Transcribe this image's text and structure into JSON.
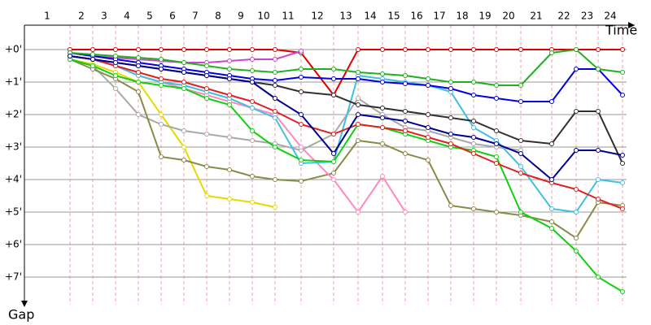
{
  "chart_data": {
    "type": "line",
    "x_label": "Time",
    "y_label": "Gap",
    "categories": [
      "1",
      "2",
      "3",
      "4",
      "5",
      "6",
      "7",
      "8",
      "9",
      "10",
      "11",
      "12",
      "13",
      "14",
      "15",
      "16",
      "17",
      "18",
      "19",
      "20",
      "21",
      "22",
      "23",
      "24"
    ],
    "ylim": [
      -0.75,
      7.85
    ],
    "yticks": [
      {
        "value": 0,
        "label": "+0'"
      },
      {
        "value": 1,
        "label": "+1'"
      },
      {
        "value": 2,
        "label": "+2'"
      },
      {
        "value": 3,
        "label": "+3'"
      },
      {
        "value": 4,
        "label": "+4'"
      },
      {
        "value": 5,
        "label": "+5'"
      },
      {
        "value": 6,
        "label": "+6'"
      },
      {
        "value": 7,
        "label": "+7'"
      }
    ],
    "grid": true,
    "series": [
      {
        "color": "#e00000",
        "values": [
          0,
          0,
          0,
          0,
          0,
          0,
          0,
          0,
          0,
          0,
          0.1,
          1.4,
          0,
          0,
          0,
          0,
          0,
          0,
          0,
          0,
          0,
          0,
          0,
          0
        ]
      },
      {
        "color": "#cc44cc",
        "values": [
          0.1,
          0.2,
          0.25,
          0.3,
          0.35,
          0.4,
          0.4,
          0.35,
          0.3,
          0.3,
          0.05,
          null,
          null,
          null,
          null,
          null,
          null,
          null,
          null,
          null,
          null,
          null,
          null,
          null
        ]
      },
      {
        "color": "#e8d800",
        "values": [
          0.3,
          0.45,
          0.7,
          1.0,
          2.0,
          3.0,
          4.5,
          4.6,
          4.7,
          4.85,
          null,
          null,
          null,
          null,
          null,
          null,
          null,
          null,
          null,
          null,
          null,
          null,
          null,
          null
        ]
      },
      {
        "color": "#a8a8a8",
        "values": [
          0.3,
          0.5,
          1.2,
          2.0,
          2.3,
          2.5,
          2.6,
          2.7,
          2.8,
          2.9,
          3.1,
          2.6,
          1.5,
          2.0,
          2.4,
          2.5,
          2.7,
          2.9,
          3.0,
          3.1,
          null,
          null,
          null,
          null
        ]
      },
      {
        "color": "#8a8a4a",
        "values": [
          0.3,
          0.6,
          0.9,
          1.3,
          3.3,
          3.4,
          3.6,
          3.7,
          3.9,
          4.0,
          4.05,
          3.8,
          2.8,
          2.9,
          3.2,
          3.4,
          4.8,
          4.9,
          5.0,
          5.1,
          5.3,
          5.8,
          4.7,
          4.8
        ]
      },
      {
        "color": "#ff88c0",
        "values": [
          0.2,
          0.3,
          0.5,
          0.8,
          1.0,
          1.2,
          1.4,
          1.6,
          1.8,
          2.0,
          3.0,
          4.0,
          5.0,
          3.9,
          5.0,
          null,
          null,
          null,
          null,
          null,
          null,
          null,
          null,
          null
        ]
      },
      {
        "color": "#40c0e0",
        "values": [
          0.2,
          0.3,
          0.5,
          0.8,
          1.0,
          1.1,
          1.3,
          1.5,
          1.8,
          2.1,
          3.5,
          3.45,
          0.8,
          0.9,
          1.0,
          1.1,
          1.3,
          2.4,
          2.8,
          3.6,
          4.9,
          5.0,
          4.0,
          4.1
        ]
      },
      {
        "color": "#303030",
        "values": [
          0.2,
          0.3,
          0.4,
          0.5,
          0.6,
          0.7,
          0.8,
          0.9,
          1.0,
          1.1,
          1.3,
          1.4,
          1.7,
          1.8,
          1.9,
          2.0,
          2.1,
          2.2,
          2.5,
          2.8,
          2.9,
          1.9,
          1.9,
          3.5
        ]
      },
      {
        "color": "#0000e0",
        "values": [
          0.1,
          0.2,
          0.3,
          0.4,
          0.5,
          0.6,
          0.7,
          0.8,
          0.9,
          0.95,
          0.85,
          0.9,
          0.9,
          1.0,
          1.05,
          1.1,
          1.2,
          1.4,
          1.5,
          1.6,
          1.6,
          0.6,
          0.6,
          1.4
        ]
      },
      {
        "color": "#10d010",
        "values": [
          0.3,
          0.5,
          0.8,
          1.0,
          1.1,
          1.2,
          1.5,
          1.7,
          2.5,
          3.0,
          3.4,
          3.45,
          2.3,
          2.4,
          2.6,
          2.8,
          3.0,
          3.1,
          3.3,
          5.0,
          5.5,
          6.2,
          7.0,
          7.45
        ]
      },
      {
        "color": "#e02020",
        "values": [
          0.2,
          0.3,
          0.5,
          0.7,
          0.9,
          1.0,
          1.2,
          1.4,
          1.6,
          1.9,
          2.3,
          2.6,
          2.3,
          2.4,
          2.5,
          2.7,
          2.9,
          3.2,
          3.5,
          3.8,
          4.1,
          4.3,
          4.6,
          4.9
        ]
      },
      {
        "color": "#20b020",
        "values": [
          0.1,
          0.15,
          0.2,
          0.25,
          0.3,
          0.4,
          0.5,
          0.6,
          0.65,
          0.7,
          0.6,
          0.6,
          0.7,
          0.75,
          0.8,
          0.9,
          1.0,
          1.0,
          1.1,
          1.1,
          0.1,
          0.0,
          0.6,
          0.7
        ]
      },
      {
        "color": "#000090",
        "values": [
          0.2,
          0.3,
          0.4,
          0.5,
          0.6,
          0.7,
          0.8,
          0.9,
          1.0,
          1.5,
          2.0,
          3.2,
          2.0,
          2.1,
          2.2,
          2.4,
          2.6,
          2.7,
          2.9,
          3.2,
          4.0,
          3.1,
          3.1,
          3.25
        ]
      }
    ]
  }
}
